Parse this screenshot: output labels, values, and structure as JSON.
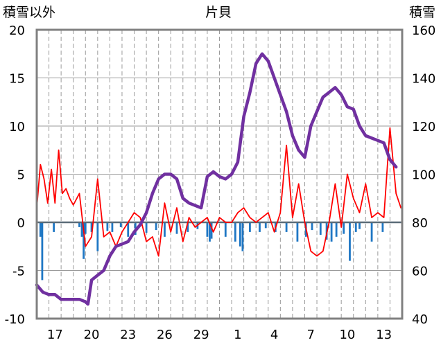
{
  "chart_data": {
    "type": "line",
    "title": "片貝",
    "left_axis_label": "積雪以外",
    "right_axis_label": "積雪",
    "left_ylim": [
      -10,
      20
    ],
    "right_ylim": [
      40,
      160
    ],
    "left_ticks": [
      "20",
      "15",
      "10",
      "5",
      "0",
      "-5",
      "-10"
    ],
    "right_ticks": [
      "160",
      "140",
      "120",
      "100",
      "80",
      "60",
      "40"
    ],
    "x_ticks": [
      "17",
      "20",
      "23",
      "26",
      "29",
      "1",
      "4",
      "7",
      "10",
      "13"
    ],
    "x_range_days": [
      0,
      30
    ],
    "grid": "vertical dashed every day, horizontal at major ticks",
    "colors": {
      "temperature": "#ff0000",
      "precipitation": "#1f77c4",
      "snow_depth": "#7030a0",
      "frame": "#808080",
      "zero_line": "#5a6b78"
    },
    "series": [
      {
        "axis": "left",
        "kind": "line",
        "x": [
          0,
          0.3,
          0.6,
          0.9,
          1.2,
          1.5,
          1.8,
          2.1,
          2.4,
          2.7,
          3.0,
          3.5,
          4.0,
          4.5,
          5.0,
          5.5,
          6.0,
          6.5,
          7.0,
          7.5,
          8.0,
          8.5,
          9.0,
          9.5,
          10.0,
          10.5,
          11.0,
          11.5,
          12.0,
          12.5,
          13.0,
          13.5,
          14.0,
          14.5,
          15.0,
          15.5,
          16.0,
          16.5,
          17.0,
          17.5,
          18.0,
          18.5,
          19.0,
          19.5,
          20.0,
          20.5,
          21.0,
          21.5,
          22.0,
          22.5,
          23.0,
          23.5,
          24.0,
          24.5,
          25.0,
          25.5,
          26.0,
          26.5,
          27.0,
          27.5,
          28.0,
          28.5,
          29.0,
          29.5,
          29.9
        ],
        "values": [
          1.5,
          6.0,
          4.5,
          2.0,
          5.5,
          2.0,
          7.5,
          3.0,
          3.5,
          2.5,
          1.8,
          3.0,
          -2.5,
          -1.5,
          4.5,
          -1.5,
          -1.0,
          -2.5,
          -1.0,
          0.0,
          1.0,
          0.5,
          -2.0,
          -1.5,
          -3.5,
          2.0,
          -1.0,
          1.5,
          -2.0,
          0.5,
          -0.5,
          0.0,
          0.5,
          -1.0,
          0.5,
          0.0,
          0.0,
          1.0,
          1.5,
          0.5,
          0.0,
          0.5,
          1.0,
          -1.0,
          1.0,
          8.0,
          0.5,
          4.0,
          0.0,
          -3.0,
          -3.5,
          -3.0,
          0.0,
          4.0,
          -0.5,
          5.0,
          2.5,
          1.0,
          4.0,
          0.5,
          1.0,
          0.5,
          9.8,
          3.0,
          1.5
        ]
      },
      {
        "axis": "left",
        "kind": "bar",
        "name": "",
        "bars": [
          [
            0.3,
            -1.5
          ],
          [
            0.45,
            -6.0
          ],
          [
            1.4,
            -1.0
          ],
          [
            3.5,
            -0.5
          ],
          [
            3.7,
            -1.5
          ],
          [
            3.85,
            -3.8
          ],
          [
            4.0,
            -1.2
          ],
          [
            4.5,
            -1.0
          ],
          [
            5.0,
            -3.0
          ],
          [
            5.8,
            -0.9
          ],
          [
            6.2,
            -1.0
          ],
          [
            6.9,
            -0.5
          ],
          [
            7.5,
            -1.5
          ],
          [
            8.1,
            -1.3
          ],
          [
            9.0,
            -1.1
          ],
          [
            9.8,
            -0.8
          ],
          [
            10.5,
            -1.5
          ],
          [
            11.5,
            -1.2
          ],
          [
            12.4,
            -1.0
          ],
          [
            13.2,
            -0.7
          ],
          [
            14.0,
            -1.5
          ],
          [
            14.2,
            -2.0
          ],
          [
            14.35,
            -1.7
          ],
          [
            15.5,
            -1.5
          ],
          [
            16.3,
            -2.0
          ],
          [
            16.7,
            -2.5
          ],
          [
            16.9,
            -3.0
          ],
          [
            17.5,
            -1.0
          ],
          [
            18.3,
            -1.0
          ],
          [
            18.8,
            -0.6
          ],
          [
            19.6,
            -1.0
          ],
          [
            20.5,
            -1.0
          ],
          [
            21.4,
            -2.0
          ],
          [
            22.1,
            -1.5
          ],
          [
            22.6,
            -0.8
          ],
          [
            23.3,
            -1.3
          ],
          [
            23.8,
            -1.8
          ],
          [
            24.2,
            -2.0
          ],
          [
            24.6,
            -1.5
          ],
          [
            25.2,
            -1.2
          ],
          [
            25.7,
            -4.0
          ],
          [
            26.2,
            -1.0
          ],
          [
            26.5,
            -0.7
          ],
          [
            27.5,
            -2.0
          ],
          [
            28.4,
            -1.0
          ]
        ]
      },
      {
        "axis": "right",
        "kind": "line",
        "x": [
          0,
          0.5,
          1.0,
          1.5,
          2.0,
          2.5,
          3.0,
          3.5,
          4.0,
          4.2,
          4.5,
          5.0,
          5.5,
          6.0,
          6.5,
          7.0,
          7.5,
          8.0,
          8.5,
          9.0,
          9.5,
          10.0,
          10.5,
          11.0,
          11.5,
          12.0,
          12.5,
          13.0,
          13.5,
          14.0,
          14.5,
          15.0,
          15.5,
          16.0,
          16.5,
          17.0,
          17.5,
          18.0,
          18.5,
          19.0,
          19.5,
          20.0,
          20.5,
          21.0,
          21.5,
          22.0,
          22.5,
          23.0,
          23.5,
          24.0,
          24.5,
          25.0,
          25.5,
          26.0,
          26.5,
          27.0,
          27.5,
          28.0,
          28.5,
          29.0,
          29.5
        ],
        "values": [
          54,
          51,
          50,
          50,
          48,
          48,
          48,
          48,
          47,
          46,
          56,
          58,
          60,
          66,
          70,
          71,
          72,
          76,
          79,
          84,
          92,
          98,
          100,
          100,
          98,
          90,
          88,
          87,
          86,
          99,
          101,
          99,
          98,
          100,
          105,
          124,
          134,
          146,
          150,
          147,
          140,
          133,
          126,
          116,
          110,
          107,
          120,
          126,
          132,
          134,
          136,
          133,
          128,
          127,
          120,
          116,
          115,
          114,
          113,
          106,
          103
        ]
      }
    ]
  }
}
